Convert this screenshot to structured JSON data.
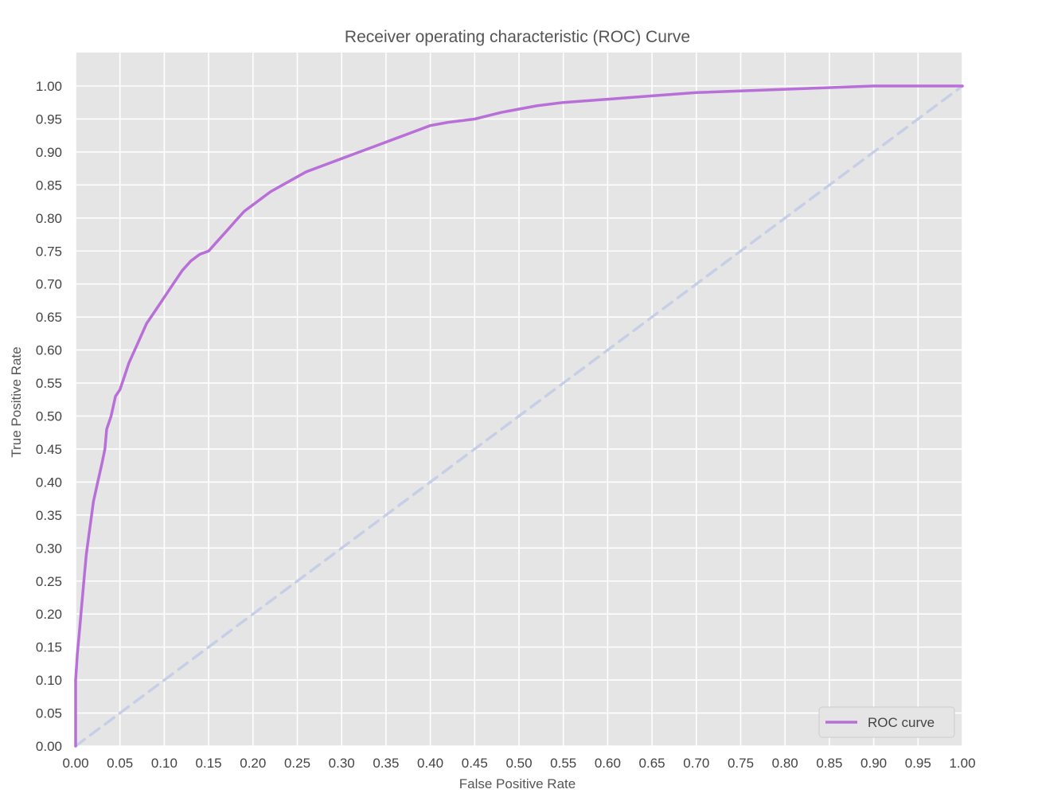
{
  "chart_data": {
    "type": "line",
    "title": "Receiver operating characteristic (ROC) Curve",
    "xlabel": "False Positive Rate",
    "ylabel": "True Positive Rate",
    "xlim": [
      0,
      1
    ],
    "ylim": [
      0,
      1.05
    ],
    "xticks": [
      "0.00",
      "0.05",
      "0.10",
      "0.15",
      "0.20",
      "0.25",
      "0.30",
      "0.35",
      "0.40",
      "0.45",
      "0.50",
      "0.55",
      "0.60",
      "0.65",
      "0.70",
      "0.75",
      "0.80",
      "0.85",
      "0.90",
      "0.95",
      "1.00"
    ],
    "yticks": [
      "0.00",
      "0.05",
      "0.10",
      "0.15",
      "0.20",
      "0.25",
      "0.30",
      "0.35",
      "0.40",
      "0.45",
      "0.50",
      "0.55",
      "0.60",
      "0.65",
      "0.70",
      "0.75",
      "0.80",
      "0.85",
      "0.90",
      "0.95",
      "1.00"
    ],
    "grid": true,
    "legend_position": "lower-right",
    "background_color": "#e5e5e5",
    "grid_color": "#ffffff",
    "series": [
      {
        "name": "ROC curve",
        "color": "#b86fd8",
        "style": "solid",
        "x": [
          0.0,
          0.0,
          0.002,
          0.004,
          0.006,
          0.008,
          0.01,
          0.012,
          0.015,
          0.018,
          0.02,
          0.025,
          0.03,
          0.033,
          0.035,
          0.04,
          0.045,
          0.05,
          0.055,
          0.06,
          0.065,
          0.07,
          0.08,
          0.09,
          0.1,
          0.11,
          0.12,
          0.13,
          0.14,
          0.15,
          0.16,
          0.17,
          0.18,
          0.19,
          0.2,
          0.22,
          0.24,
          0.26,
          0.28,
          0.3,
          0.32,
          0.34,
          0.36,
          0.38,
          0.4,
          0.42,
          0.45,
          0.48,
          0.5,
          0.52,
          0.55,
          0.6,
          0.65,
          0.7,
          0.8,
          0.9,
          1.0
        ],
        "y": [
          0.0,
          0.1,
          0.14,
          0.17,
          0.2,
          0.23,
          0.26,
          0.29,
          0.32,
          0.35,
          0.37,
          0.4,
          0.43,
          0.45,
          0.48,
          0.5,
          0.53,
          0.54,
          0.56,
          0.58,
          0.595,
          0.61,
          0.64,
          0.66,
          0.68,
          0.7,
          0.72,
          0.735,
          0.745,
          0.75,
          0.765,
          0.78,
          0.795,
          0.81,
          0.82,
          0.84,
          0.855,
          0.87,
          0.88,
          0.89,
          0.9,
          0.91,
          0.92,
          0.93,
          0.94,
          0.945,
          0.95,
          0.96,
          0.965,
          0.97,
          0.975,
          0.98,
          0.985,
          0.99,
          0.995,
          1.0,
          1.0
        ]
      },
      {
        "name": "",
        "color": "#c7cfe6",
        "style": "dashed",
        "x": [
          0,
          1
        ],
        "y": [
          0,
          1
        ]
      }
    ]
  }
}
